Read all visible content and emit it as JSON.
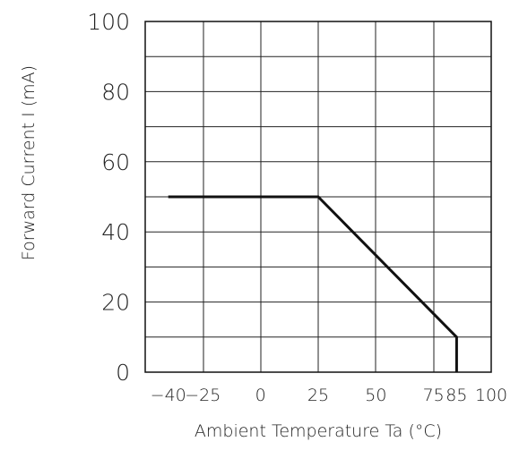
{
  "chart_data": {
    "type": "line",
    "title": "",
    "xlabel": "Ambient  Temperature Ta  (°C)",
    "ylabel": "Forward  Current I   (mA)",
    "xlim": [
      -50,
      100
    ],
    "ylim": [
      0,
      100
    ],
    "x_ticks": [
      {
        "value": -40,
        "label": "−40"
      },
      {
        "value": -25,
        "label": "−25"
      },
      {
        "value": 0,
        "label": "0"
      },
      {
        "value": 25,
        "label": "25"
      },
      {
        "value": 50,
        "label": "50"
      },
      {
        "value": 75,
        "label": "75"
      },
      {
        "value": 85,
        "label": "85"
      },
      {
        "value": 100,
        "label": "100"
      }
    ],
    "y_ticks": [
      {
        "value": 0,
        "label": "0"
      },
      {
        "value": 20,
        "label": "20"
      },
      {
        "value": 40,
        "label": "40"
      },
      {
        "value": 60,
        "label": "60"
      },
      {
        "value": 80,
        "label": "80"
      },
      {
        "value": 100,
        "label": "100"
      }
    ],
    "grid": true,
    "series": [
      {
        "x": [
          -40,
          25,
          85,
          85
        ],
        "y": [
          50,
          50,
          10,
          0
        ],
        "color": "#111111"
      }
    ]
  }
}
